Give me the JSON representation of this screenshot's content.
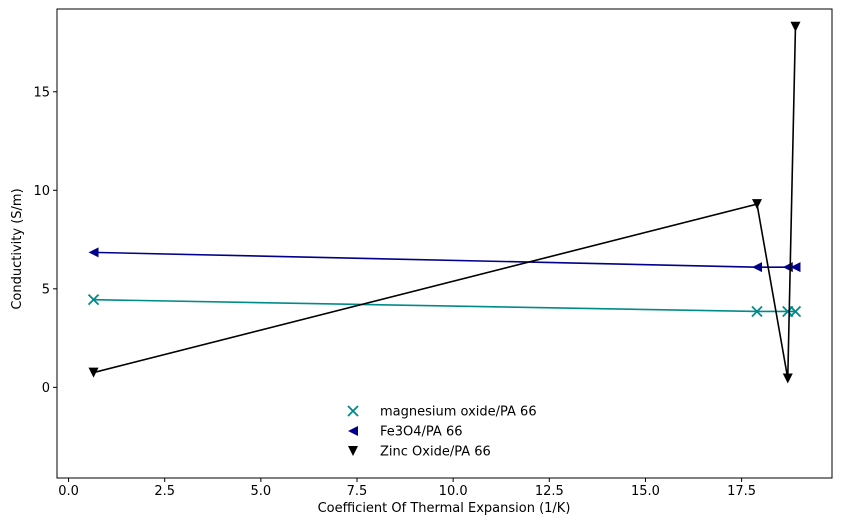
{
  "chart_data": {
    "type": "line",
    "title": "",
    "xlabel": "Coefficient Of Thermal Expansion (1/K)",
    "ylabel": "Conductivity (S/m)",
    "xlim": [
      -0.3,
      19.85
    ],
    "ylim": [
      -4.6,
      19.2
    ],
    "xticks": [
      0.0,
      2.5,
      5.0,
      7.5,
      10.0,
      12.5,
      15.0,
      17.5
    ],
    "xtick_labels": [
      "0.0",
      "2.5",
      "5.0",
      "7.5",
      "10.0",
      "12.5",
      "15.0",
      "17.5"
    ],
    "yticks": [
      0,
      5,
      10,
      15
    ],
    "ytick_labels": [
      "0",
      "5",
      "10",
      "15"
    ],
    "grid": false,
    "legend_position": "lower-center",
    "series": [
      {
        "name": "magnesium oxide/PA 66",
        "color": "#008b8b",
        "marker": "x",
        "x": [
          0.65,
          17.9,
          18.7,
          18.9
        ],
        "y": [
          4.45,
          3.85,
          3.85,
          3.85
        ]
      },
      {
        "name": "Fe3O4/PA 66",
        "color": "#00008b",
        "marker": "triangle-left",
        "x": [
          0.65,
          17.9,
          18.7,
          18.9
        ],
        "y": [
          6.85,
          6.1,
          6.1,
          6.1
        ]
      },
      {
        "name": "Zinc Oxide/PA 66",
        "color": "#000000",
        "marker": "triangle-down",
        "x": [
          0.65,
          17.9,
          18.7,
          18.9
        ],
        "y": [
          0.75,
          9.3,
          0.45,
          18.3
        ]
      }
    ]
  }
}
